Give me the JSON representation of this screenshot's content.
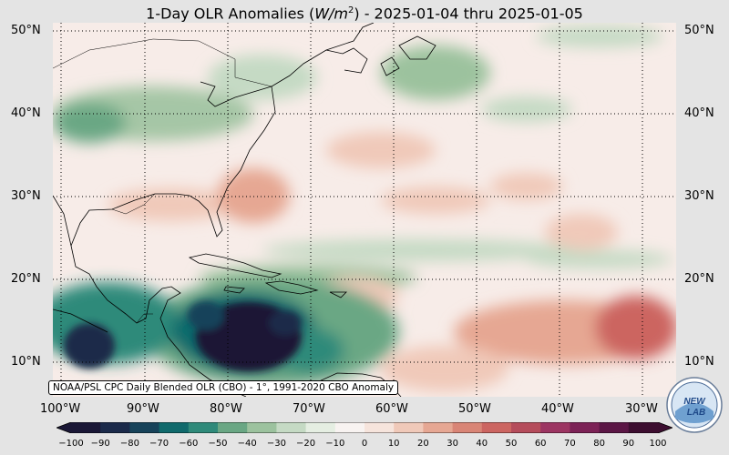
{
  "title": {
    "prefix": "1-Day OLR Anomalies (",
    "unit": "W/m",
    "unit_exp": "2",
    "suffix": ") - 2025-01-04 thru 2025-01-05"
  },
  "latitude_labels": [
    "50°N",
    "40°N",
    "30°N",
    "20°N",
    "10°N"
  ],
  "longitude_labels": [
    "100°W",
    "90°W",
    "80°W",
    "70°W",
    "60°W",
    "50°W",
    "40°W",
    "30°W"
  ],
  "source_note": "NOAA/PSL CPC Daily Blended OLR (CBO) - 1°, 1991-2020 CBO Anomaly",
  "logo": {
    "text_top": "NEW",
    "text_bottom": "LAB",
    "icon": "noaa-lab-logo-icon"
  },
  "colorbar": {
    "ticks": [
      "−100",
      "−90",
      "−80",
      "−70",
      "−60",
      "−50",
      "−40",
      "−30",
      "−20",
      "−10",
      "0",
      "10",
      "20",
      "30",
      "40",
      "50",
      "60",
      "70",
      "80",
      "90",
      "100"
    ],
    "stops": [
      "#1a1736",
      "#1b2a4a",
      "#17435a",
      "#106a6c",
      "#2f8a7a",
      "#6aa784",
      "#9cc29e",
      "#c5dac4",
      "#e5eee2",
      "#f8f3f1",
      "#f6e4dc",
      "#f0c9b9",
      "#e6a793",
      "#d98576",
      "#cc6561",
      "#b54c5b",
      "#9c3562",
      "#7c2256",
      "#5b1645",
      "#3d0e30"
    ]
  },
  "colors": {
    "background": "#e4e4e4",
    "neutral": "#f7ece8",
    "coast": "#000000",
    "grid": "#000000"
  }
}
